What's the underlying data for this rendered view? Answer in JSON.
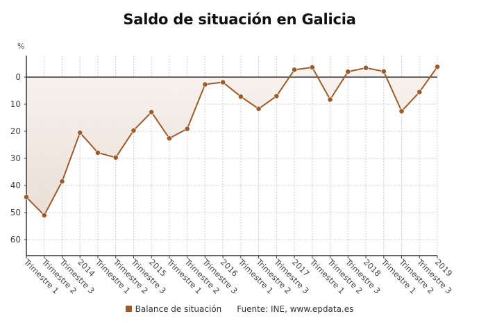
{
  "title": "Saldo de situación en Galicia",
  "unit_label": "%",
  "legend": {
    "series_label": "Balance de situación",
    "source": "Fuente: INE, www.epdata.es"
  },
  "colors": {
    "line": "#9b5b2b",
    "marker": "#9b5b2b",
    "fill_top": "#efe6de",
    "zero_line": "#333333",
    "grid": "#cccccc"
  },
  "chart_data": {
    "type": "line",
    "title": "Saldo de situación en Galicia",
    "xlabel": "",
    "ylabel": "%",
    "y_axis_inverted_labels": true,
    "yticks": [
      0,
      10,
      20,
      30,
      40,
      50,
      60
    ],
    "ylim": [
      -66,
      8
    ],
    "grid": true,
    "legend_position": "bottom",
    "categories": [
      "Trimestre 1",
      "Trimestre 2",
      "Trimestre 3",
      "2014",
      "Trimestre 1",
      "Trimestre 2",
      "Trimestre 3",
      "2015",
      "Trimestre 1",
      "Trimestre 2",
      "Trimestre 3",
      "2016",
      "Trimestre 1",
      "Trimestre 2",
      "Trimestre 3",
      "2017",
      "Trimestre 1",
      "Trimestre 2",
      "Trimestre 3",
      "2018",
      "Trimestre 1",
      "Trimestre 2",
      "Trimestre 3",
      "2019"
    ],
    "series": [
      {
        "name": "Balance de situación",
        "values": [
          -44.3,
          -51.0,
          -38.5,
          -20.5,
          -27.9,
          -29.7,
          -19.7,
          -12.9,
          -22.6,
          -19.1,
          -2.7,
          -1.9,
          -7.2,
          -11.7,
          -7.0,
          2.7,
          3.6,
          -8.3,
          2.0,
          3.4,
          2.1,
          -12.6,
          -5.5,
          3.8
        ]
      }
    ],
    "annotations": [
      "Fuente: INE, www.epdata.es"
    ]
  }
}
